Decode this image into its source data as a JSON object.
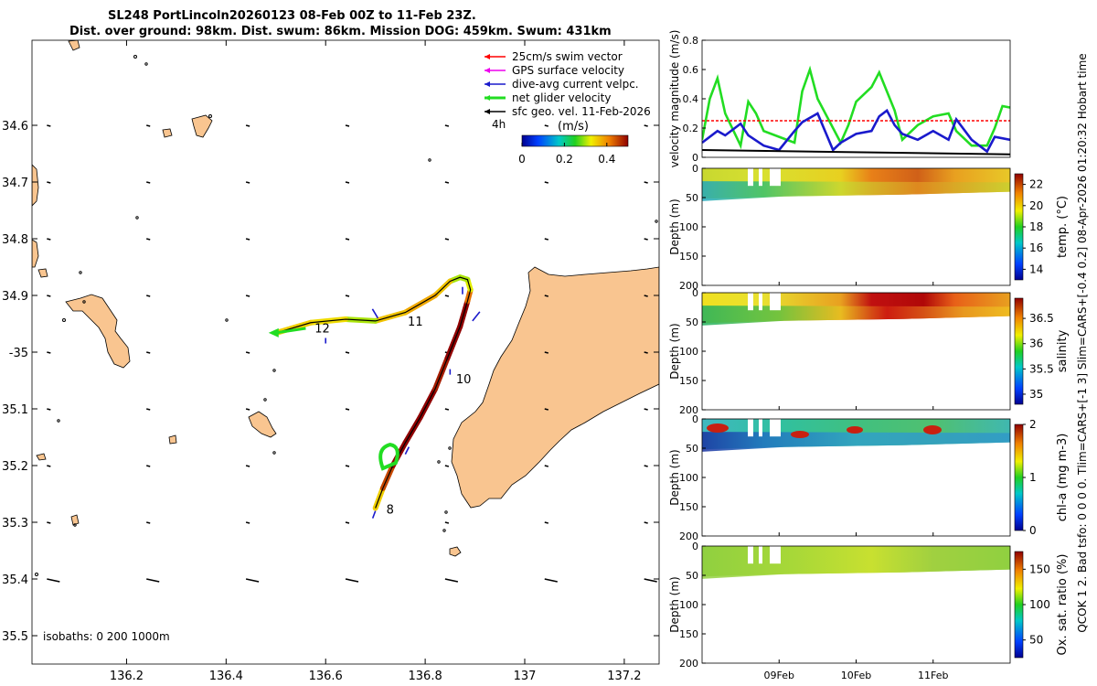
{
  "title_line1": "SL248 PortLincoln20260123 08-Feb 00Z to 11-Feb 23Z.",
  "title_line2": "Dist. over ground: 98km. Dist. swum: 86km. Mission DOG: 459km. Swum: 431km",
  "side_annotation": "QCOK 1  2. Bad tsfo: 0  0  0  0. Tlim=CARS+[-1 3] Slim=CARS+[-0.4 0.2] 08-Apr-2026 01:20:32 Hobart time",
  "colors": {
    "land": "#f9c590",
    "track": "#8b1a1a",
    "net": "#22dd22",
    "current": "#1a1acc",
    "swim": "#ff0000",
    "gps": "#ee00ee"
  },
  "chart_data": [
    {
      "id": "map",
      "type": "scatter",
      "title": "glider track map",
      "xlim": [
        136.01,
        137.27
      ],
      "ylim": [
        -35.55,
        -34.45
      ],
      "x_ticks": [
        136.2,
        136.4,
        136.6,
        136.8,
        137,
        137.2
      ],
      "x_tick_labels": [
        "136.2",
        "136.4",
        "136.6",
        "136.8",
        "137",
        "137.2"
      ],
      "y_ticks": [
        -34.6,
        -34.7,
        -34.8,
        -34.9,
        -35.0,
        -35.1,
        -35.2,
        -35.3,
        -35.4,
        -35.5
      ],
      "y_tick_labels": [
        "34.6",
        "34.7",
        "34.8",
        "34.9",
        "-35",
        "35.1",
        "35.2",
        "35.3",
        "35.4",
        "35.5"
      ],
      "legend": [
        {
          "label": "25cm/s swim vector",
          "color": "#ff0000"
        },
        {
          "label": "GPS surface velocity",
          "color": "#ee00ee"
        },
        {
          "label": "dive-avg current velpc.",
          "color": "#1a1acc"
        },
        {
          "label": "net glider velocity",
          "color": "#22dd22"
        },
        {
          "label": "sfc geo. vel. 11-Feb-2026",
          "color": "#000000"
        }
      ],
      "interval_label": "4h",
      "colorbar": {
        "label": "(m/s)",
        "ticks": [
          "0",
          "0.2",
          "0.4"
        ],
        "range": [
          0,
          0.5
        ]
      },
      "track": {
        "lon": [
          136.7,
          136.715,
          136.735,
          136.76,
          136.79,
          136.82,
          136.845,
          136.87,
          136.885,
          136.891,
          136.885,
          136.87,
          136.85,
          136.82,
          136.76,
          136.7,
          136.64,
          136.57,
          136.505
        ],
        "lat": [
          -35.275,
          -35.24,
          -35.2,
          -35.16,
          -35.115,
          -35.065,
          -35.01,
          -34.955,
          -34.91,
          -34.89,
          -34.872,
          -34.868,
          -34.875,
          -34.9,
          -34.93,
          -34.945,
          -34.942,
          -34.948,
          -34.965
        ],
        "speed": [
          0.35,
          0.45,
          0.5,
          0.5,
          0.5,
          0.48,
          0.5,
          0.5,
          0.42,
          0.32,
          0.3,
          0.3,
          0.36,
          0.38,
          0.36,
          0.3,
          0.34,
          0.35,
          0.3
        ]
      },
      "day_labels": [
        {
          "text": "8",
          "lon": 136.722,
          "lat": -35.285
        },
        {
          "text": "10",
          "lon": 136.862,
          "lat": -35.055
        },
        {
          "text": "11",
          "lon": 136.765,
          "lat": -34.953
        },
        {
          "text": "12",
          "lon": 136.578,
          "lat": -34.965
        }
      ],
      "isobath_label": "isobaths: 0   200   1000m"
    },
    {
      "id": "velocity",
      "type": "line",
      "ylabel": "velocity magnitude (m/s)",
      "ylim": [
        0,
        0.8
      ],
      "y_ticks": [
        0,
        0.2,
        0.4,
        0.6,
        0.8
      ],
      "y_tick_labels": [
        "0",
        "0.2",
        "0.4",
        "0.6",
        "0.8"
      ],
      "xlim": [
        8.0,
        12.0
      ],
      "series": [
        {
          "name": "net glider velocity",
          "color": "#22dd22",
          "x": [
            8.0,
            8.1,
            8.2,
            8.3,
            8.5,
            8.6,
            8.7,
            8.8,
            9.0,
            9.2,
            9.3,
            9.4,
            9.5,
            9.7,
            9.8,
            9.9,
            10.0,
            10.2,
            10.3,
            10.5,
            10.6,
            10.8,
            11.0,
            11.2,
            11.3,
            11.5,
            11.7,
            11.8,
            11.9,
            12.0
          ],
          "y": [
            0.12,
            0.4,
            0.54,
            0.3,
            0.08,
            0.38,
            0.3,
            0.18,
            0.14,
            0.1,
            0.45,
            0.6,
            0.4,
            0.2,
            0.1,
            0.22,
            0.38,
            0.48,
            0.58,
            0.32,
            0.12,
            0.22,
            0.28,
            0.3,
            0.18,
            0.08,
            0.08,
            0.2,
            0.35,
            0.34
          ]
        },
        {
          "name": "25cm/s swim vector",
          "color": "#ff0000",
          "y_const": 0.25
        },
        {
          "name": "dive-avg current velpc.",
          "color": "#1a1acc",
          "x": [
            8.0,
            8.2,
            8.3,
            8.5,
            8.6,
            8.8,
            9.0,
            9.2,
            9.3,
            9.5,
            9.7,
            9.8,
            10.0,
            10.2,
            10.3,
            10.4,
            10.5,
            10.6,
            10.8,
            11.0,
            11.2,
            11.3,
            11.5,
            11.7,
            11.8,
            12.0
          ],
          "y": [
            0.1,
            0.18,
            0.15,
            0.23,
            0.15,
            0.08,
            0.05,
            0.18,
            0.24,
            0.3,
            0.05,
            0.1,
            0.16,
            0.18,
            0.28,
            0.32,
            0.22,
            0.16,
            0.12,
            0.18,
            0.12,
            0.26,
            0.12,
            0.04,
            0.14,
            0.12
          ]
        },
        {
          "name": "sfc geo. vel.",
          "color": "#000000",
          "x": [
            8.0,
            12.0
          ],
          "y": [
            0.05,
            0.02
          ]
        }
      ]
    },
    {
      "id": "temp",
      "type": "heatmap",
      "ylabel": "Depth (m)",
      "y_tick_labels": [
        "0",
        "50",
        "100",
        "150",
        "200"
      ],
      "colorbar_label": "temp. (°C)",
      "colorbar_ticks": [
        "14",
        "16",
        "18",
        "20",
        "22"
      ],
      "clim": [
        13,
        23
      ]
    },
    {
      "id": "salinity",
      "type": "heatmap",
      "ylabel": "Depth (m)",
      "y_tick_labels": [
        "0",
        "50",
        "100",
        "150",
        "200"
      ],
      "colorbar_label": "salinity",
      "colorbar_ticks": [
        "35",
        "35.5",
        "36",
        "36.5"
      ],
      "clim": [
        34.8,
        36.9
      ]
    },
    {
      "id": "chla",
      "type": "heatmap",
      "ylabel": "Depth (m)",
      "y_tick_labels": [
        "0",
        "50",
        "100",
        "150",
        "200"
      ],
      "colorbar_label": "chl-a (mg m-3)",
      "colorbar_ticks": [
        "0",
        "1",
        "2"
      ],
      "clim": [
        0,
        2
      ]
    },
    {
      "id": "oxsat",
      "type": "heatmap",
      "ylabel": "Depth (m)",
      "y_tick_labels": [
        "0",
        "50",
        "100",
        "150",
        "200"
      ],
      "colorbar_label": "Ox. sat. ratio (%)",
      "colorbar_ticks": [
        "50",
        "100",
        "150"
      ],
      "clim": [
        25,
        175
      ]
    },
    {
      "id": "time_axis",
      "type": "line",
      "x_tick_labels": [
        "09Feb",
        "10Feb",
        "11Feb"
      ],
      "x_ticks": [
        9.0,
        10.0,
        11.0
      ],
      "xlim": [
        8.0,
        12.0
      ]
    }
  ]
}
